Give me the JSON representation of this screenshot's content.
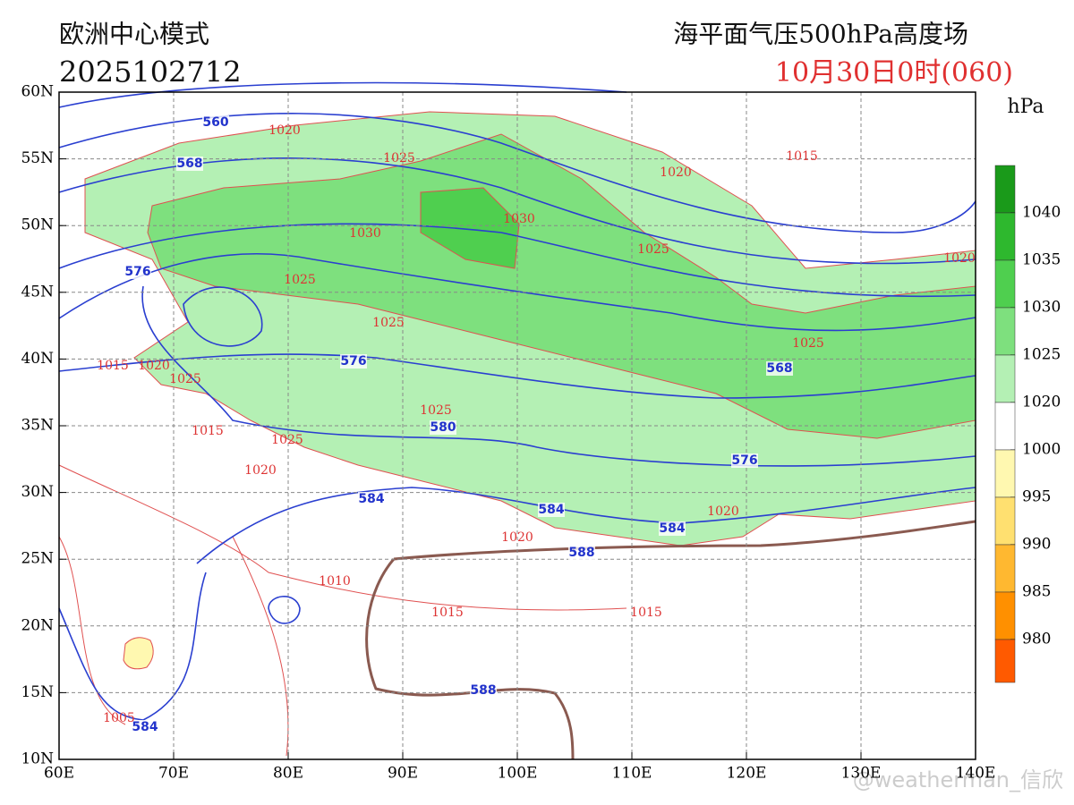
{
  "header": {
    "model": "欧洲中心模式",
    "run": "2025102712",
    "product": "海平面气压500hPa高度场",
    "valid_time": "10月30日0时(060)"
  },
  "map": {
    "xticks": [
      {
        "value": 60,
        "label": "60E"
      },
      {
        "value": 70,
        "label": "70E"
      },
      {
        "value": 80,
        "label": "80E"
      },
      {
        "value": 90,
        "label": "90E"
      },
      {
        "value": 100,
        "label": "100E"
      },
      {
        "value": 110,
        "label": "110E"
      },
      {
        "value": 120,
        "label": "120E"
      },
      {
        "value": 130,
        "label": "130E"
      },
      {
        "value": 140,
        "label": "140E"
      }
    ],
    "yticks": [
      {
        "value": 10,
        "label": "10N"
      },
      {
        "value": 15,
        "label": "15N"
      },
      {
        "value": 20,
        "label": "20N"
      },
      {
        "value": 25,
        "label": "25N"
      },
      {
        "value": 30,
        "label": "30N"
      },
      {
        "value": 35,
        "label": "35N"
      },
      {
        "value": 40,
        "label": "40N"
      },
      {
        "value": 45,
        "label": "45N"
      },
      {
        "value": 50,
        "label": "50N"
      },
      {
        "value": 55,
        "label": "55N"
      },
      {
        "value": 60,
        "label": "60N"
      }
    ],
    "height_labels": [
      560,
      568,
      576,
      576,
      580,
      584,
      584,
      584,
      584,
      588,
      588,
      576,
      568
    ],
    "pressure_labels": [
      1020,
      1025,
      1020,
      1015,
      1030,
      1030,
      1025,
      1020,
      1025,
      1025,
      1025,
      1015,
      1020,
      1025,
      1015,
      1025,
      1025,
      1020,
      1020,
      1020,
      1010,
      1015,
      1015,
      1005
    ]
  },
  "colorbar": {
    "unit": "hPa",
    "levels": [
      {
        "label": 1040,
        "color": "#1a9a1a"
      },
      {
        "label": 1035,
        "color": "#2eb82e"
      },
      {
        "label": 1030,
        "color": "#4fcf4f"
      },
      {
        "label": 1025,
        "color": "#7ee07e"
      },
      {
        "label": 1020,
        "color": "#b4f0b4"
      },
      {
        "label": 1000,
        "color": "#ffffff"
      },
      {
        "label": 995,
        "color": "#fff8b0"
      },
      {
        "label": 990,
        "color": "#ffe070"
      },
      {
        "label": 985,
        "color": "#ffb830"
      },
      {
        "label": 980,
        "color": "#ff9000"
      }
    ],
    "bottom_color": "#ff5a00"
  },
  "watermark": "@weatherman_信欣"
}
